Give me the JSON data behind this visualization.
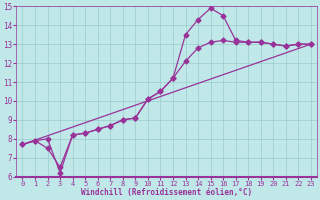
{
  "xlabel": "Windchill (Refroidissement éolien,°C)",
  "xlim": [
    -0.5,
    23.5
  ],
  "ylim": [
    6,
    15
  ],
  "xticks": [
    0,
    1,
    2,
    3,
    4,
    5,
    6,
    7,
    8,
    9,
    10,
    11,
    12,
    13,
    14,
    15,
    16,
    17,
    18,
    19,
    20,
    21,
    22,
    23
  ],
  "yticks": [
    6,
    7,
    8,
    9,
    10,
    11,
    12,
    13,
    14,
    15
  ],
  "bg_color": "#c0e8e8",
  "line_color": "#993399",
  "grid_color": "#99cccc",
  "line1_x": [
    0,
    1,
    2,
    3,
    4,
    5,
    6,
    7,
    8,
    9,
    10,
    11,
    12,
    13,
    14,
    15,
    16,
    17,
    18,
    19,
    20,
    21,
    22,
    23
  ],
  "line1_y": [
    7.7,
    7.9,
    8.0,
    6.2,
    8.2,
    8.3,
    8.5,
    8.7,
    9.0,
    9.1,
    10.1,
    10.5,
    11.2,
    13.5,
    14.3,
    14.9,
    14.5,
    13.2,
    13.1,
    13.1,
    13.0,
    12.9,
    13.0,
    13.0
  ],
  "line2_x": [
    0,
    1,
    2,
    3,
    4,
    5,
    6,
    7,
    8,
    9,
    10,
    11,
    12,
    13,
    14,
    15,
    16,
    17,
    18,
    19,
    20,
    21,
    22,
    23
  ],
  "line2_y": [
    7.7,
    7.9,
    7.5,
    6.5,
    8.2,
    8.3,
    8.5,
    8.7,
    9.0,
    9.1,
    10.1,
    10.5,
    11.2,
    12.1,
    12.8,
    13.1,
    13.2,
    13.1,
    13.1,
    13.1,
    13.0,
    12.9,
    13.0,
    13.0
  ],
  "line3_x": [
    0,
    23
  ],
  "line3_y": [
    7.7,
    13.0
  ],
  "marker": "D",
  "markersize": 2.5,
  "linewidth": 0.9
}
